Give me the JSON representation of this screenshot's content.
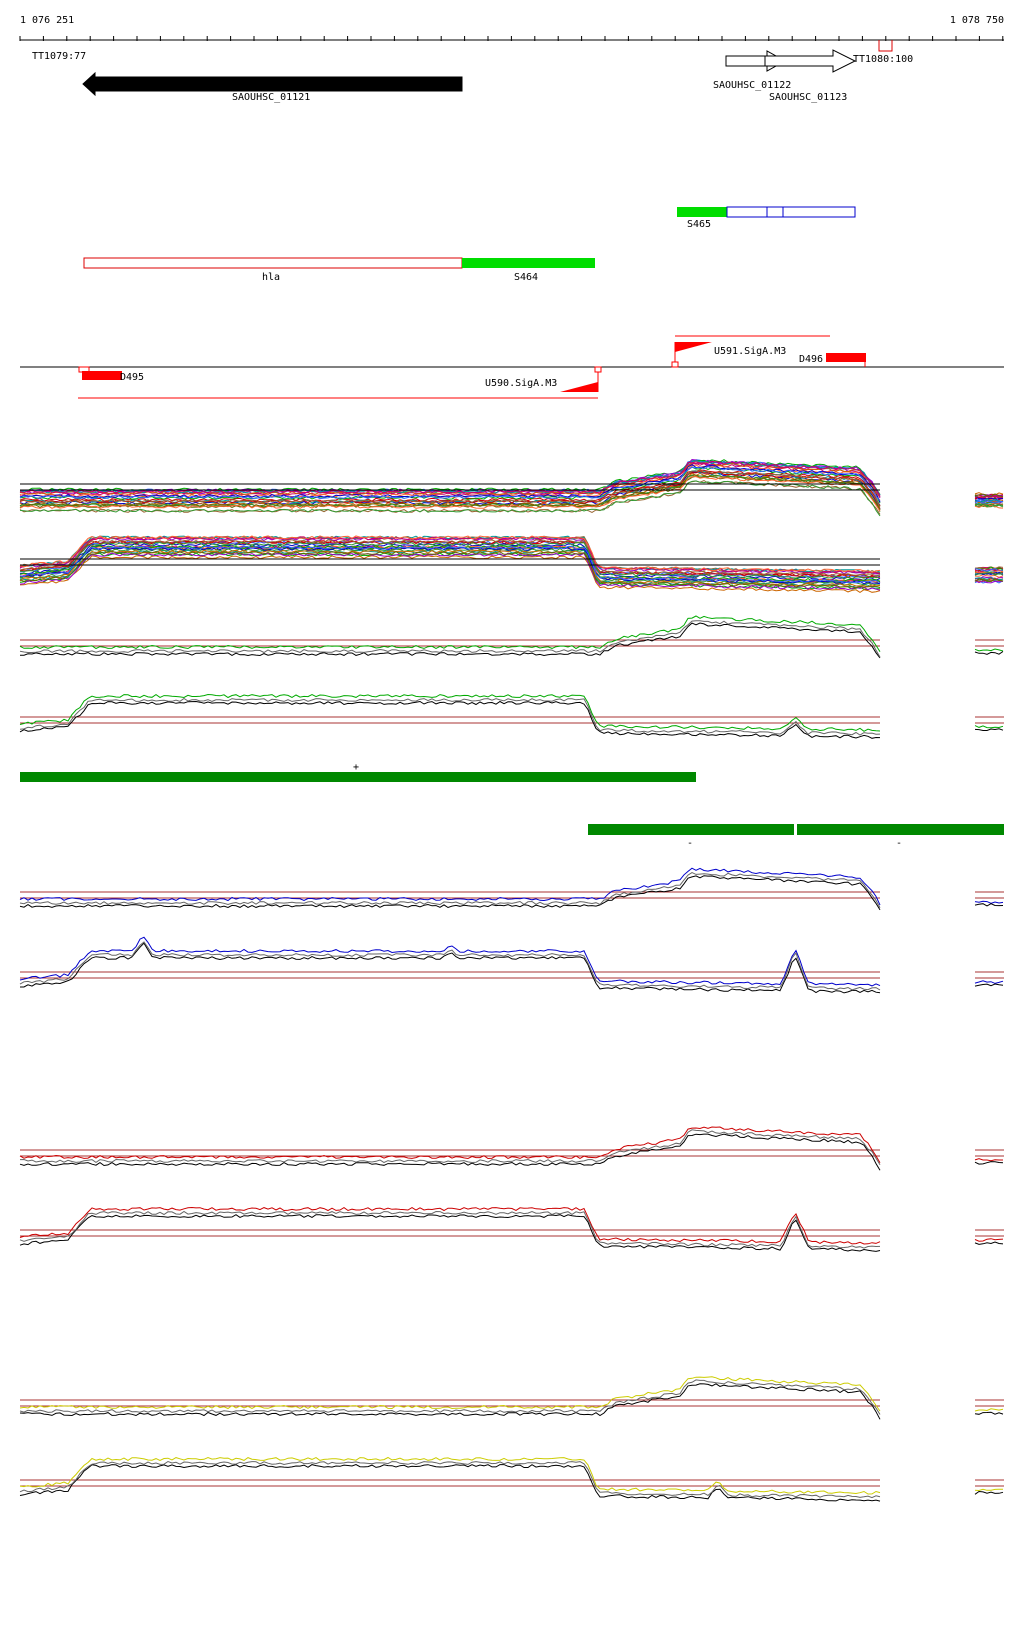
{
  "ruler": {
    "start_label": "1 076 251",
    "end_label": "1 078 750"
  },
  "terminators": [
    {
      "label": "TT1079:77"
    },
    {
      "label": "TT1080:100"
    }
  ],
  "genes": [
    {
      "label": "SAOUHSC_01121",
      "strand": "-",
      "fill": "#000000"
    },
    {
      "label": "SAOUHSC_01122",
      "strand": "+",
      "fill": "#ffffff"
    },
    {
      "label": "SAOUHSC_01123",
      "strand": "+",
      "fill": "#ffffff"
    }
  ],
  "annotation_tracks": [
    {
      "label": "S465",
      "color": "#00dd00"
    },
    {
      "label": "hla",
      "color": "#dd0000"
    },
    {
      "label": "S464",
      "color": "#00dd00"
    }
  ],
  "promoters": [
    {
      "label": "U591.SigA.M3",
      "color": "#ff0000"
    },
    {
      "label": "U590.SigA.M3",
      "color": "#ff0000"
    },
    {
      "label": "D495",
      "color": "#ff0000"
    },
    {
      "label": "D496",
      "color": "#ff0000"
    }
  ],
  "segments": {
    "plus": {
      "symbol": "+",
      "color": "#008800"
    },
    "minus_1": {
      "symbol": "-",
      "color": "#008800"
    },
    "minus_2": {
      "symbol": "-",
      "color": "#008800"
    }
  },
  "expression_colors": {
    "green": "#00aa00",
    "blue": "#0000cc",
    "red": "#cc0000",
    "yellow": "#cccc00",
    "threshold": "#aa3333"
  }
}
